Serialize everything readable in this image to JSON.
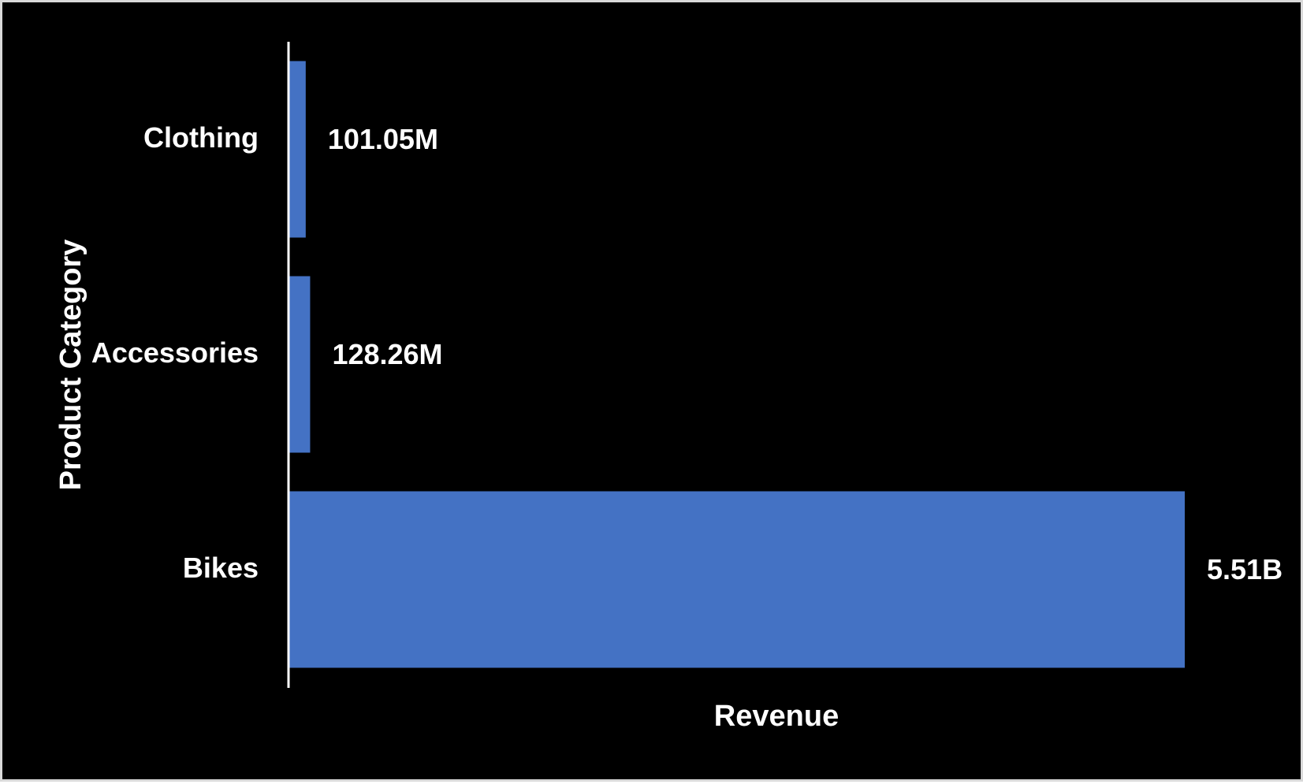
{
  "chart_data": {
    "type": "bar",
    "orientation": "horizontal",
    "title": "",
    "xlabel": "Revenue",
    "ylabel": "Product Category",
    "categories": [
      "Clothing",
      "Accessories",
      "Bikes"
    ],
    "values": [
      101050000,
      128260000,
      5510000000
    ],
    "data_labels": [
      "101.05M",
      "128.26M",
      "5.51B"
    ],
    "xlim": [
      0,
      5510000000
    ],
    "grid": false,
    "legend": "none",
    "colors": {
      "background": "#000000",
      "bar": "#4472C4",
      "text": "#ffffff",
      "axis": "#ffffff",
      "frame_border": "#d9d9d9"
    }
  }
}
